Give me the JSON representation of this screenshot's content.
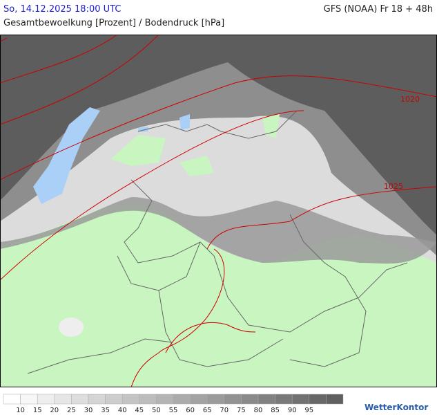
{
  "header": {
    "datetime": "So, 14.12.2025 18:00 UTC",
    "model": "GFS (NOAA) Fr 18 + 48h",
    "subtitle": "Gesamtbewoelkung [Prozent] / Bodendruck [hPa]"
  },
  "isobars": [
    1020,
    1025
  ],
  "legend": {
    "labels": [
      10,
      15,
      20,
      25,
      30,
      35,
      40,
      45,
      50,
      55,
      60,
      65,
      70,
      75,
      80,
      85,
      90,
      95
    ]
  },
  "logo": "WetterKontor"
}
